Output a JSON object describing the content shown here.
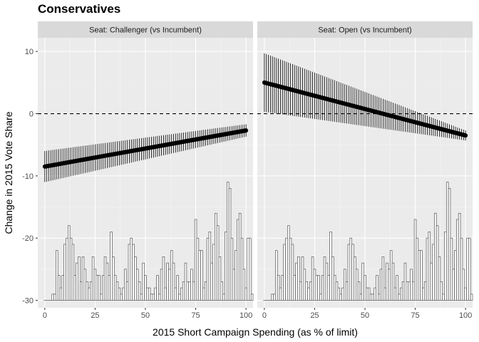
{
  "title": "Conservatives",
  "chart_data": {
    "type": "line",
    "xlabel": "2015 Short Campaign Spending (as % of limit)",
    "ylabel": "Change in 2015 Vote Share",
    "xlim": [
      -3.5,
      103.5
    ],
    "ylim": [
      -31.2,
      12.2
    ],
    "x_ticks": [
      0,
      25,
      50,
      75,
      100
    ],
    "y_ticks": [
      -30,
      -20,
      -10,
      0,
      10
    ],
    "reference_line_y": 0,
    "histogram": {
      "baseline": -30,
      "bar_width": 1,
      "x_start": 0,
      "heights": [
        0,
        0,
        0,
        0,
        1,
        1,
        8,
        4,
        2,
        4,
        9,
        10,
        12,
        10,
        9,
        4,
        6,
        7,
        3,
        7,
        5,
        3,
        2,
        3,
        7,
        5,
        4,
        4,
        1,
        4,
        7,
        6,
        4,
        11,
        7,
        4,
        3,
        2,
        1,
        2,
        5,
        3,
        9,
        10,
        9,
        7,
        5,
        3,
        1,
        6,
        4,
        2,
        2,
        1,
        1,
        2,
        4,
        1,
        5,
        7,
        2,
        6,
        5,
        8,
        6,
        2,
        4,
        1,
        2,
        3,
        6,
        3,
        3,
        5,
        3,
        13,
        10,
        8,
        8,
        2,
        3,
        10,
        11,
        6,
        9,
        14,
        12,
        7,
        3,
        1,
        11,
        19,
        18,
        10,
        5,
        8,
        13,
        14,
        10,
        5,
        2,
        10,
        10,
        1
      ]
    },
    "facets": [
      {
        "label": "Seat: Challenger (vs Incumbent)",
        "fit_line": {
          "x": [
            0,
            100
          ],
          "y": [
            -8.5,
            -2.7
          ]
        },
        "ribbon": {
          "x": [
            0,
            100
          ],
          "lower": [
            -11.0,
            -3.7
          ],
          "upper": [
            -6.0,
            -1.7
          ]
        }
      },
      {
        "label": "Seat: Open (vs Incumbent)",
        "fit_line": {
          "x": [
            0,
            100
          ],
          "y": [
            5.0,
            -3.5
          ]
        },
        "ribbon": {
          "x": [
            0,
            100
          ],
          "lower": [
            0.3,
            -4.3
          ],
          "upper": [
            9.7,
            -2.7
          ]
        }
      }
    ]
  }
}
